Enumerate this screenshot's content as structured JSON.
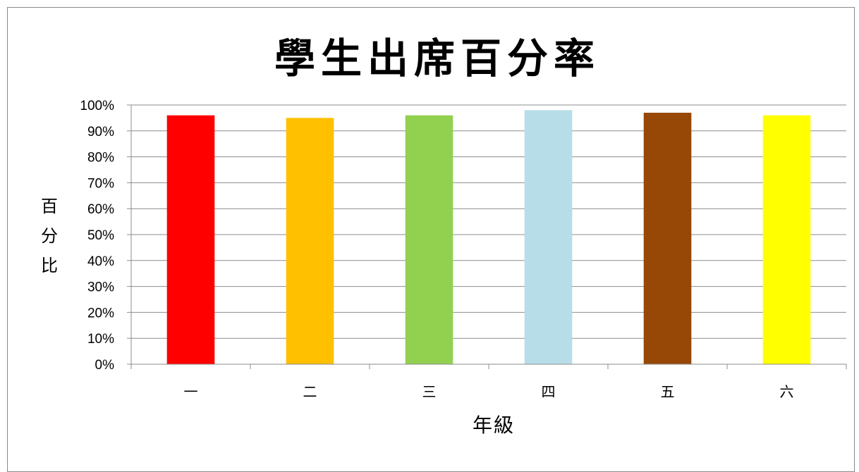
{
  "chart_data": {
    "type": "bar",
    "title": "學生出席百分率",
    "xlabel": "年級",
    "ylabel": "百分比",
    "categories": [
      "一",
      "二",
      "三",
      "四",
      "五",
      "六"
    ],
    "values": [
      0.96,
      0.95,
      0.96,
      0.98,
      0.97,
      0.96
    ],
    "colors": [
      "#ff0000",
      "#ffc000",
      "#92d050",
      "#b7dde8",
      "#974706",
      "#ffff00"
    ],
    "ylim": [
      0,
      1
    ],
    "yticks": [
      0,
      0.1,
      0.2,
      0.3,
      0.4,
      0.5,
      0.6,
      0.7,
      0.8,
      0.9,
      1.0
    ],
    "ytick_labels": [
      "0%",
      "10%",
      "20%",
      "30%",
      "40%",
      "50%",
      "60%",
      "70%",
      "80%",
      "90%",
      "100%"
    ],
    "grid": true,
    "legend": "none"
  }
}
